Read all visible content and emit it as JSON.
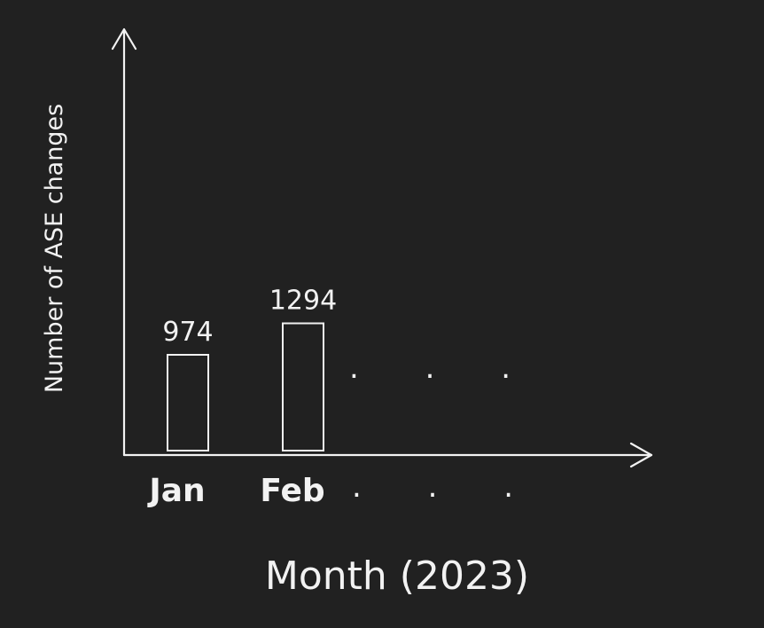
{
  "chart_data": {
    "type": "bar",
    "categories": [
      "Jan",
      "Feb"
    ],
    "values": [
      974,
      1294
    ],
    "value_labels": [
      "974",
      "1294"
    ],
    "continuation": ". . .",
    "xlabel": "Month (2023)",
    "ylabel": "Number of ASE changes",
    "grid": false,
    "legend": "none",
    "colors": {
      "background": "#212121",
      "ink": "#f2f2f2"
    }
  }
}
